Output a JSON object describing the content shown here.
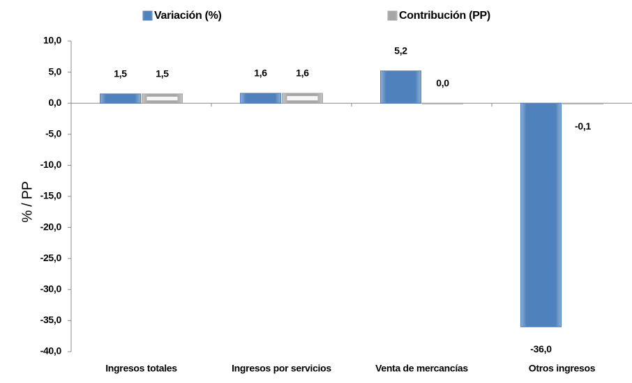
{
  "chart_data": {
    "type": "bar",
    "categories": [
      "Ingresos totales",
      "Ingresos por servicios",
      "Venta de mercancías",
      "Otros ingresos"
    ],
    "series": [
      {
        "name": "Variación (%)",
        "color": "#4f81bd",
        "values": [
          1.5,
          1.6,
          5.2,
          -36.0
        ],
        "value_labels": [
          "1,5",
          "1,6",
          "5,2",
          "-36,0"
        ]
      },
      {
        "name": "Contribución (PP)",
        "color": "#a6a6a6",
        "values": [
          1.5,
          1.6,
          0.0,
          -0.1
        ],
        "value_labels": [
          "1,5",
          "1,6",
          "0,0",
          "-0,1"
        ]
      }
    ],
    "ylabel": "% / PP",
    "ylim": [
      -40,
      10
    ],
    "yticks": [
      {
        "value": -40,
        "label": "-40,0"
      },
      {
        "value": -35,
        "label": "-35,0"
      },
      {
        "value": -30,
        "label": "-30,0"
      },
      {
        "value": -25,
        "label": "-25,0"
      },
      {
        "value": -20,
        "label": "-20,0"
      },
      {
        "value": -15,
        "label": "-15,0"
      },
      {
        "value": -10,
        "label": "-10,0"
      },
      {
        "value": -5,
        "label": "-5,0"
      },
      {
        "value": 0,
        "label": "0,0"
      },
      {
        "value": 5,
        "label": "5,0"
      },
      {
        "value": 10,
        "label": "10,0"
      }
    ],
    "legend": "top",
    "grid": false
  }
}
